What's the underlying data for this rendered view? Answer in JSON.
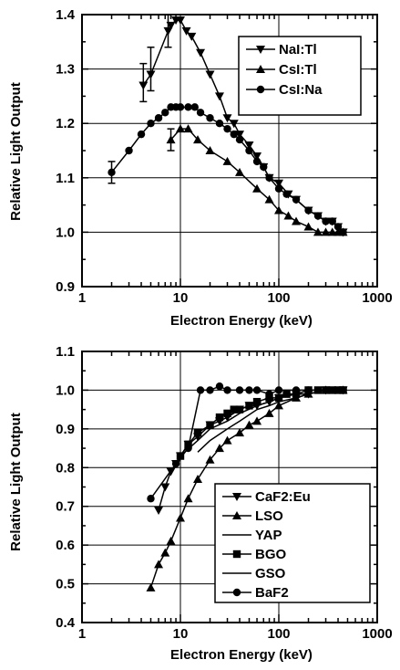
{
  "chart_data": [
    {
      "type": "line",
      "xscale": "log",
      "xlim": [
        1,
        1000
      ],
      "ylim": [
        0.9,
        1.4
      ],
      "xticks": [
        1,
        10,
        100,
        1000
      ],
      "xtick_labels": [
        "1",
        "10",
        "100",
        "1000"
      ],
      "yticks": [
        0.9,
        1.0,
        1.1,
        1.2,
        1.3,
        1.4
      ],
      "ytick_labels": [
        "0.9",
        "1.0",
        "1.1",
        "1.2",
        "1.3",
        "1.4"
      ],
      "grid": true,
      "xlabel": "Electron Energy (keV)",
      "ylabel": "Relative Light Output",
      "legend_position": "top-right",
      "series": [
        {
          "name": "NaI:Tl",
          "marker": "triangle-down",
          "x": [
            4.2,
            5,
            7.5,
            8,
            9,
            10,
            11.5,
            13,
            16,
            20,
            25,
            30,
            35,
            40,
            50,
            60,
            70,
            80,
            100,
            125,
            150,
            200,
            250,
            300,
            350,
            400,
            450
          ],
          "y": [
            1.27,
            1.29,
            1.37,
            1.38,
            1.39,
            1.39,
            1.37,
            1.36,
            1.33,
            1.29,
            1.25,
            1.21,
            1.2,
            1.18,
            1.16,
            1.14,
            1.12,
            1.1,
            1.09,
            1.07,
            1.06,
            1.04,
            1.03,
            1.02,
            1.02,
            1.01,
            1.0
          ]
        },
        {
          "name": "CsI:Tl",
          "marker": "triangle-up",
          "x": [
            8,
            10,
            12,
            15,
            20,
            30,
            40,
            60,
            80,
            100,
            125,
            150,
            200,
            250,
            300,
            350,
            400,
            450
          ],
          "y": [
            1.17,
            1.19,
            1.19,
            1.17,
            1.15,
            1.13,
            1.11,
            1.08,
            1.06,
            1.04,
            1.03,
            1.02,
            1.01,
            1.0,
            1.0,
            1.0,
            1.0,
            1.0
          ]
        },
        {
          "name": "CsI:Na",
          "marker": "circle",
          "x": [
            2,
            3,
            4,
            5,
            6,
            7,
            8,
            9,
            10,
            12,
            14,
            16,
            20,
            25,
            30,
            35,
            40,
            50,
            60,
            70,
            80,
            100,
            120,
            150,
            200,
            250,
            300,
            350,
            400,
            450
          ],
          "y": [
            1.11,
            1.15,
            1.18,
            1.2,
            1.21,
            1.22,
            1.23,
            1.23,
            1.23,
            1.23,
            1.23,
            1.22,
            1.21,
            1.2,
            1.19,
            1.18,
            1.17,
            1.15,
            1.13,
            1.12,
            1.1,
            1.08,
            1.07,
            1.06,
            1.04,
            1.03,
            1.02,
            1.02,
            1.01,
            1.0
          ]
        }
      ],
      "error_bars": [
        {
          "x": 2,
          "y_low": 1.09,
          "y_high": 1.13
        },
        {
          "x": 4.2,
          "y_low": 1.24,
          "y_high": 1.31
        },
        {
          "x": 5,
          "y_low": 1.26,
          "y_high": 1.34
        },
        {
          "x": 7.5,
          "y_low": 1.34,
          "y_high": 1.4
        },
        {
          "x": 8,
          "y_low": 1.15,
          "y_high": 1.19
        }
      ]
    },
    {
      "type": "line",
      "xscale": "log",
      "xlim": [
        1,
        1000
      ],
      "ylim": [
        0.4,
        1.1
      ],
      "xticks": [
        1,
        10,
        100,
        1000
      ],
      "xtick_labels": [
        "1",
        "10",
        "100",
        "1000"
      ],
      "yticks": [
        0.4,
        0.5,
        0.6,
        0.7,
        0.8,
        0.9,
        1.0,
        1.1
      ],
      "ytick_labels": [
        "0.4",
        "0.5",
        "0.6",
        "0.7",
        "0.8",
        "0.9",
        "1.0",
        "1.1"
      ],
      "grid": true,
      "xlabel": "Electron Energy (keV)",
      "ylabel": "Relative Light Output",
      "legend_position": "bottom-right",
      "series": [
        {
          "name": "CaF2:Eu",
          "marker": "triangle-down",
          "x": [
            6,
            7,
            8,
            9,
            10,
            12,
            15,
            20,
            25,
            30,
            40,
            50,
            60,
            80,
            100,
            150,
            200,
            300,
            450
          ],
          "y": [
            0.69,
            0.75,
            0.79,
            0.81,
            0.83,
            0.86,
            0.88,
            0.91,
            0.92,
            0.93,
            0.95,
            0.96,
            0.96,
            0.97,
            0.98,
            0.99,
            0.99,
            1.0,
            1.0
          ]
        },
        {
          "name": "LSO",
          "marker": "triangle-up",
          "x": [
            5,
            6,
            7,
            8,
            10,
            12,
            15,
            20,
            25,
            30,
            40,
            50,
            60,
            80,
            100,
            150,
            200,
            300,
            450
          ],
          "y": [
            0.49,
            0.55,
            0.58,
            0.61,
            0.67,
            0.72,
            0.77,
            0.82,
            0.85,
            0.87,
            0.89,
            0.91,
            0.92,
            0.94,
            0.96,
            0.98,
            0.99,
            1.0,
            1.0
          ]
        },
        {
          "name": "YAP",
          "marker": "none",
          "x": [
            10,
            15,
            20,
            30,
            40,
            60,
            80,
            100,
            150,
            200,
            300,
            450
          ],
          "y": [
            0.83,
            0.87,
            0.9,
            0.92,
            0.94,
            0.96,
            0.97,
            0.98,
            0.99,
            0.99,
            1.0,
            1.0
          ]
        },
        {
          "name": "BGO",
          "marker": "square",
          "x": [
            10,
            12,
            15,
            20,
            25,
            30,
            35,
            40,
            50,
            60,
            80,
            100,
            120,
            150,
            200,
            250,
            300,
            350,
            400,
            450
          ],
          "y": [
            0.83,
            0.86,
            0.89,
            0.91,
            0.93,
            0.94,
            0.95,
            0.95,
            0.96,
            0.97,
            0.98,
            0.98,
            0.99,
            0.99,
            1.0,
            1.0,
            1.0,
            1.0,
            1.0,
            1.0
          ]
        },
        {
          "name": "GSO",
          "marker": "none",
          "x": [
            15,
            20,
            30,
            40,
            60,
            80,
            100,
            150,
            200,
            300,
            450
          ],
          "y": [
            0.84,
            0.87,
            0.9,
            0.92,
            0.95,
            0.96,
            0.97,
            0.98,
            0.99,
            1.0,
            1.0
          ]
        },
        {
          "name": "BaF2",
          "marker": "circle",
          "x": [
            5,
            9,
            12,
            16,
            20,
            25,
            30,
            40,
            50,
            60,
            80,
            100,
            150,
            200,
            300,
            450
          ],
          "y": [
            0.72,
            0.81,
            0.85,
            1.0,
            1.0,
            1.01,
            1.0,
            1.0,
            1.0,
            1.0,
            0.99,
            1.0,
            1.0,
            1.0,
            1.0,
            1.0
          ]
        }
      ],
      "error_bars": []
    }
  ]
}
